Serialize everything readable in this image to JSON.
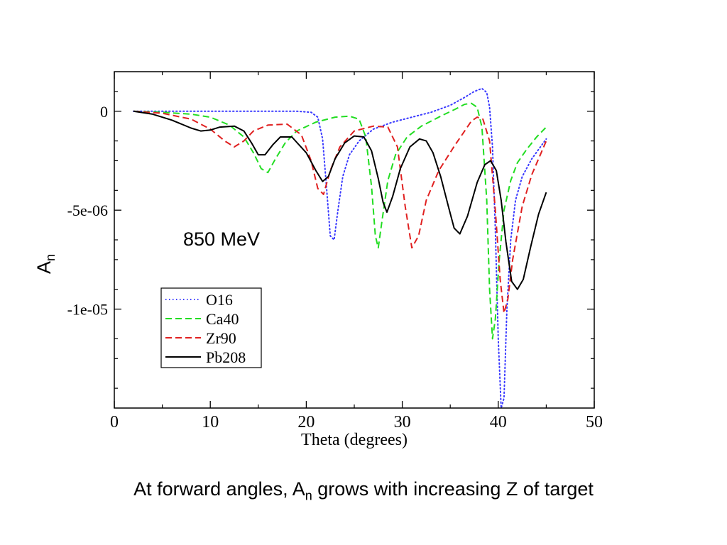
{
  "chart_data": {
    "type": "line",
    "xlabel": "Theta (degrees)",
    "ylabel": "A",
    "ylabel_sub": "n",
    "annotation": "850 MeV",
    "xlim": [
      0,
      50
    ],
    "ylim": [
      -1.5e-05,
      2e-06
    ],
    "xticks": [
      0,
      10,
      20,
      30,
      40,
      50
    ],
    "xtick_labels": [
      "0",
      "10",
      "20",
      "30",
      "40",
      "50"
    ],
    "yticks": [
      0,
      -5e-06,
      -1e-05
    ],
    "ytick_labels": [
      "0",
      "-5e-06",
      "-1e-05"
    ],
    "grid": false,
    "legend_position": "lower-left",
    "series": [
      {
        "name": "O16",
        "color": "#3a3aff",
        "dash": "dotted",
        "x": [
          2,
          6,
          10,
          14,
          17,
          19,
          20.5,
          21.2,
          21.7,
          22.1,
          22.5,
          22.9,
          23.3,
          23.8,
          24.5,
          25.5,
          27,
          29,
          31,
          33,
          35,
          36.5,
          37.5,
          38.3,
          38.8,
          39.1,
          39.4,
          39.7,
          40,
          40.3,
          40.6,
          40.9,
          41.3,
          41.8,
          42.5,
          43.5,
          45
        ],
        "y": [
          0,
          0,
          0,
          0,
          0,
          0,
          -5e-08,
          -3e-07,
          -1.4e-06,
          -3.8e-06,
          -6.3e-06,
          -6.5e-06,
          -5e-06,
          -3.3e-06,
          -2.2e-06,
          -1.5e-06,
          -9e-07,
          -5.5e-07,
          -3e-07,
          -5e-08,
          3e-07,
          7e-07,
          1e-06,
          1.15e-06,
          9.5e-07,
          2e-07,
          -1.8e-06,
          -6e-06,
          -1.15e-05,
          -1.5e-05,
          -1.45e-05,
          -1e-05,
          -6.5e-06,
          -4.5e-06,
          -3.3e-06,
          -2.4e-06,
          -1.4e-06
        ]
      },
      {
        "name": "Ca40",
        "color": "#22dd22",
        "dash": "dashed",
        "x": [
          2,
          5,
          8,
          10,
          12,
          13.5,
          14.5,
          15.3,
          16,
          16.8,
          17.8,
          19,
          21,
          23,
          24.5,
          25.5,
          26.2,
          26.8,
          27.2,
          27.5,
          27.9,
          28.5,
          29.3,
          30.5,
          32,
          34,
          35.5,
          36.5,
          37.2,
          37.8,
          38.3,
          38.8,
          39.1,
          39.4,
          39.7,
          40.1,
          40.6,
          41.3,
          42,
          43,
          44,
          45
        ],
        "y": [
          0,
          -5e-08,
          -1.5e-07,
          -3e-07,
          -7e-07,
          -1.3e-06,
          -2.1e-06,
          -2.9e-06,
          -3.1e-06,
          -2.4e-06,
          -1.6e-06,
          -1e-06,
          -5.5e-07,
          -3e-07,
          -2.5e-07,
          -4e-07,
          -1.3e-06,
          -3.8e-06,
          -6.3e-06,
          -6.9e-06,
          -5.5e-06,
          -3.5e-06,
          -2.2e-06,
          -1.3e-06,
          -7.5e-07,
          -2.5e-07,
          1e-07,
          3.5e-07,
          4e-07,
          2e-07,
          -8e-07,
          -4.5e-06,
          -9e-06,
          -1.15e-05,
          -1.05e-05,
          -7.5e-06,
          -5e-06,
          -3.5e-06,
          -2.6e-06,
          -1.9e-06,
          -1.3e-06,
          -8e-07
        ]
      },
      {
        "name": "Zr90",
        "color": "#e02020",
        "dash": "dashed",
        "x": [
          2,
          5,
          8,
          10,
          11.5,
          12.5,
          13.5,
          14.5,
          16,
          18,
          19.5,
          20.5,
          21.2,
          21.8,
          22.5,
          23.5,
          25,
          27,
          28.5,
          29.5,
          30.3,
          31,
          31.7,
          32.5,
          33.8,
          35.5,
          36.5,
          37.2,
          37.8,
          38.4,
          39.1,
          39.7,
          40.2,
          40.6,
          41,
          41.5,
          42.5,
          43.5,
          45
        ],
        "y": [
          0,
          -1e-07,
          -4e-07,
          -9e-07,
          -1.5e-06,
          -1.8e-06,
          -1.5e-06,
          -1e-06,
          -7e-07,
          -6.5e-07,
          -1.2e-06,
          -2.5e-06,
          -3.9e-06,
          -4.2e-06,
          -3e-06,
          -1.8e-06,
          -1e-06,
          -7.5e-07,
          -8e-07,
          -1.8e-06,
          -4.8e-06,
          -6.9e-06,
          -6.3e-06,
          -4.5e-06,
          -3e-06,
          -1.7e-06,
          -1e-06,
          -5e-07,
          -3e-07,
          -4e-07,
          -1.5e-06,
          -5e-06,
          -8.5e-06,
          -1.02e-05,
          -9.5e-06,
          -7.5e-06,
          -4.8e-06,
          -3.2e-06,
          -1.5e-06
        ]
      },
      {
        "name": "Pb208",
        "color": "#000000",
        "dash": "solid",
        "x": [
          2,
          4,
          6,
          8,
          9,
          10,
          11,
          12.5,
          13.5,
          14.3,
          15,
          15.7,
          16.5,
          17.3,
          18.5,
          20,
          21,
          21.7,
          22.3,
          23,
          24,
          25,
          26,
          26.8,
          27.5,
          28,
          28.4,
          29,
          29.8,
          30.8,
          31.8,
          32.5,
          33.2,
          34,
          34.8,
          35.4,
          36,
          36.8,
          37.8,
          38.6,
          39.2,
          39.8,
          40.3,
          40.8,
          41.4,
          42,
          42.6,
          43.4,
          44.2,
          45
        ],
        "y": [
          0,
          -1.5e-07,
          -4.5e-07,
          -8.5e-07,
          -1e-06,
          -9.5e-07,
          -8e-07,
          -7.5e-07,
          -1e-06,
          -1.6e-06,
          -2.2e-06,
          -2.2e-06,
          -1.7e-06,
          -1.3e-06,
          -1.3e-06,
          -2.1e-06,
          -3e-06,
          -3.55e-06,
          -3.3e-06,
          -2.4e-06,
          -1.6e-06,
          -1.25e-06,
          -1.3e-06,
          -2e-06,
          -3.4e-06,
          -4.6e-06,
          -5.1e-06,
          -4.3e-06,
          -2.9e-06,
          -1.8e-06,
          -1.4e-06,
          -1.5e-06,
          -2.1e-06,
          -3.3e-06,
          -4.8e-06,
          -5.9e-06,
          -6.2e-06,
          -5.3e-06,
          -3.6e-06,
          -2.7e-06,
          -2.5e-06,
          -3e-06,
          -4.5e-06,
          -6.6e-06,
          -8.6e-06,
          -9e-06,
          -8.5e-06,
          -6.8e-06,
          -5.2e-06,
          -4.1e-06
        ]
      }
    ]
  },
  "caption": {
    "prefix": "At forward angles, A",
    "sub": "n",
    "suffix": " grows with increasing Z of target"
  }
}
